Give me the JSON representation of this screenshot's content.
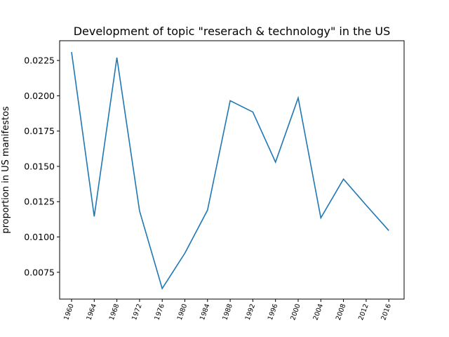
{
  "chart_data": {
    "type": "line",
    "title": "Development of topic \"reserach & technology\" in the US",
    "xlabel": "",
    "ylabel": "proportion in US manifestos",
    "x": [
      "1960",
      "1964",
      "1968",
      "1972",
      "1976",
      "1980",
      "1984",
      "1988",
      "1992",
      "1996",
      "2000",
      "2004",
      "2008",
      "2012",
      "2016"
    ],
    "series": [
      {
        "values": [
          0.0231,
          0.01145,
          0.0227,
          0.01185,
          0.00635,
          0.00885,
          0.0119,
          0.01965,
          0.01885,
          0.0153,
          0.01985,
          0.01135,
          0.0141,
          0.01225,
          0.01045
        ]
      }
    ],
    "yticks": [
      "0.0075",
      "0.0100",
      "0.0125",
      "0.0150",
      "0.0175",
      "0.0200",
      "0.0225"
    ],
    "ylim": [
      0.0056,
      0.0239
    ],
    "grid": false,
    "line_color": "#1f77b4"
  }
}
